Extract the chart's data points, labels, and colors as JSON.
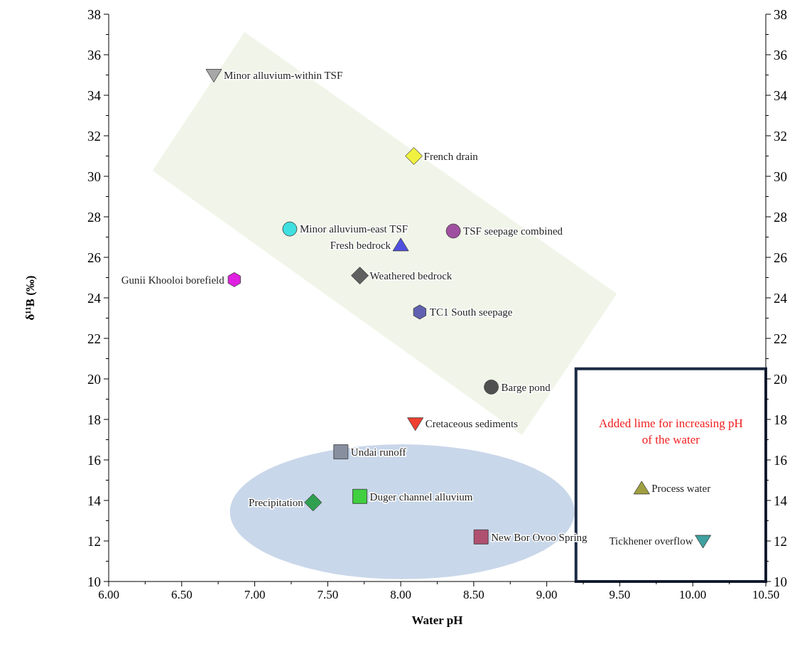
{
  "chart_data": {
    "type": "scatter",
    "xlabel": "Water pH",
    "ylabel": "δ¹¹B (‰)",
    "xlim": [
      6,
      10.5
    ],
    "ylim": [
      10,
      38
    ],
    "y2lim": [
      10,
      38
    ],
    "xticks": [
      {
        "value": 6,
        "label": "6.00"
      },
      {
        "value": 6.25,
        "label": null
      },
      {
        "value": 6.5,
        "label": "6.50"
      },
      {
        "value": 6.75,
        "label": null
      },
      {
        "value": 7,
        "label": "7.00"
      },
      {
        "value": 7.25,
        "label": null
      },
      {
        "value": 7.5,
        "label": "7.50"
      },
      {
        "value": 7.75,
        "label": null
      },
      {
        "value": 8,
        "label": "8.00"
      },
      {
        "value": 8.25,
        "label": null
      },
      {
        "value": 8.5,
        "label": "8.50"
      },
      {
        "value": 8.75,
        "label": null
      },
      {
        "value": 9,
        "label": "9.00"
      },
      {
        "value": 9.25,
        "label": null
      },
      {
        "value": 9.5,
        "label": "9.50"
      },
      {
        "value": 9.75,
        "label": null
      },
      {
        "value": 10,
        "label": "10.00"
      },
      {
        "value": 10.25,
        "label": null
      },
      {
        "value": 10.5,
        "label": "10.50"
      }
    ],
    "yticks": [
      10,
      {
        "value": 11,
        "label": null
      },
      12,
      {
        "value": 13,
        "label": null
      },
      14,
      {
        "value": 15,
        "label": null
      },
      16,
      {
        "value": 17,
        "label": null
      },
      18,
      {
        "value": 19,
        "label": null
      },
      20,
      {
        "value": 21,
        "label": null
      },
      22,
      {
        "value": 23,
        "label": null
      },
      24,
      {
        "value": 25,
        "label": null
      },
      26,
      {
        "value": 27,
        "label": null
      },
      28,
      {
        "value": 29,
        "label": null
      },
      30,
      {
        "value": 31,
        "label": null
      },
      32,
      {
        "value": 33,
        "label": null
      },
      34,
      {
        "value": 35,
        "label": null
      },
      36,
      {
        "value": 37,
        "label": null
      },
      38
    ],
    "y2ticks": [
      10,
      {
        "value": 11,
        "label": null
      },
      12,
      {
        "value": 13,
        "label": null
      },
      14,
      {
        "value": 15,
        "label": null
      },
      16,
      {
        "value": 17,
        "label": null
      },
      18,
      {
        "value": 19,
        "label": null
      },
      20,
      {
        "value": 21,
        "label": null
      },
      22,
      {
        "value": 23,
        "label": null
      },
      24,
      {
        "value": 25,
        "label": null
      },
      26,
      {
        "value": 27,
        "label": null
      },
      28,
      {
        "value": 29,
        "label": null
      },
      30,
      {
        "value": 31,
        "label": null
      },
      32,
      {
        "value": 33,
        "label": null
      },
      34,
      {
        "value": 35,
        "label": null
      },
      36,
      {
        "value": 37,
        "label": null
      },
      38
    ],
    "grid": false,
    "annotations": [
      "Added lime for increasing pH of the water"
    ],
    "series": [
      {
        "name": "Minor alluvium-within TSF",
        "color": "#a8a8a8",
        "marker": "triangle-down",
        "x": [
          6.72
        ],
        "values": [
          35.0
        ]
      },
      {
        "name": "French drain",
        "color": "#f0f040",
        "marker": "diamond",
        "x": [
          8.09
        ],
        "values": [
          31.0
        ]
      },
      {
        "name": "Minor alluvium-east TSF",
        "color": "#40e0e0",
        "marker": "circle",
        "x": [
          7.24
        ],
        "values": [
          27.4
        ]
      },
      {
        "name": "TSF seepage combined",
        "color": "#a050a0",
        "marker": "circle",
        "x": [
          8.36
        ],
        "values": [
          27.3
        ]
      },
      {
        "name": "Fresh bedrock",
        "color": "#5050e0",
        "marker": "triangle",
        "x": [
          8.0
        ],
        "values": [
          26.6
        ]
      },
      {
        "name": "Weathered bedrock",
        "color": "#606060",
        "marker": "diamond",
        "x": [
          7.72
        ],
        "values": [
          25.1
        ]
      },
      {
        "name": "Gunii Khooloi borefield",
        "color": "#e020e0",
        "x": [
          6.86
        ],
        "values": [
          24.9
        ]
      },
      {
        "name": "TC1 South seepage",
        "color": "#6060b0",
        "x": [
          8.13
        ],
        "values": [
          23.3
        ]
      },
      {
        "name": "Barge pond",
        "color": "#505050",
        "marker": "circle",
        "x": [
          8.62
        ],
        "values": [
          19.6
        ]
      },
      {
        "name": "Cretaceous sediments",
        "color": "#f04030",
        "marker": "triangle-down",
        "x": [
          8.1
        ],
        "values": [
          17.8
        ]
      },
      {
        "name": "Undai runoff",
        "color": "#8890a0",
        "marker": "square",
        "x": [
          7.59
        ],
        "values": [
          16.4
        ]
      },
      {
        "name": "Duger channel alluvium",
        "color": "#40d040",
        "marker": "square",
        "x": [
          7.72
        ],
        "values": [
          14.2
        ]
      },
      {
        "name": "Precipitation",
        "color": "#30a050",
        "marker": "diamond",
        "x": [
          7.4
        ],
        "values": [
          13.9
        ]
      },
      {
        "name": "New Bor Ovoo Spring",
        "color": "#b05070",
        "marker": "square",
        "x": [
          8.55
        ],
        "values": [
          12.2
        ]
      },
      {
        "name": "Process water",
        "color": "#a0a040",
        "marker": "triangle",
        "x": [
          9.65
        ],
        "values": [
          14.6
        ]
      },
      {
        "name": "Tickhener overflow",
        "color": "#40a0a0",
        "marker": "triangle-down",
        "x": [
          10.07
        ],
        "values": [
          12.0
        ]
      }
    ]
  }
}
